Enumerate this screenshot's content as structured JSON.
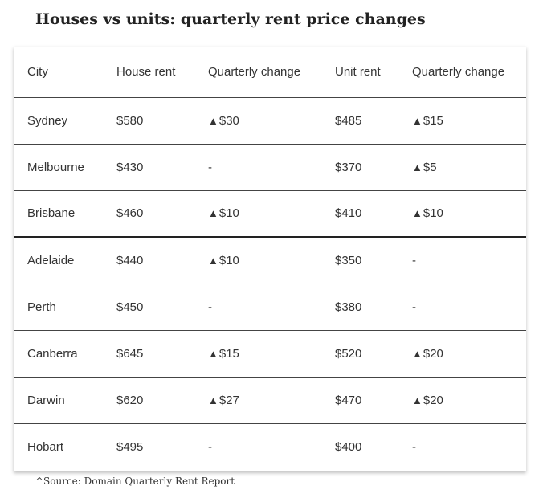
{
  "title": "Houses vs units: quarterly rent price changes",
  "source": "^Source: Domain Quarterly Rent Report",
  "chart_data": {
    "type": "table",
    "title": "Houses vs units: quarterly rent price changes",
    "columns": [
      "City",
      "House rent",
      "Quarterly change",
      "Unit rent",
      "Quarterly change"
    ],
    "rows": [
      {
        "city": "Sydney",
        "house_rent": "$580",
        "house_change": "$30",
        "house_change_dir": "up",
        "unit_rent": "$485",
        "unit_change": "$15",
        "unit_change_dir": "up"
      },
      {
        "city": "Melbourne",
        "house_rent": "$430",
        "house_change": "-",
        "house_change_dir": "none",
        "unit_rent": "$370",
        "unit_change": "$5",
        "unit_change_dir": "up"
      },
      {
        "city": "Brisbane",
        "house_rent": "$460",
        "house_change": "$10",
        "house_change_dir": "up",
        "unit_rent": "$410",
        "unit_change": "$10",
        "unit_change_dir": "up"
      },
      {
        "city": "Adelaide",
        "house_rent": "$440",
        "house_change": "$10",
        "house_change_dir": "up",
        "unit_rent": "$350",
        "unit_change": "-",
        "unit_change_dir": "none"
      },
      {
        "city": "Perth",
        "house_rent": "$450",
        "house_change": "-",
        "house_change_dir": "none",
        "unit_rent": "$380",
        "unit_change": "-",
        "unit_change_dir": "none"
      },
      {
        "city": "Canberra",
        "house_rent": "$645",
        "house_change": "$15",
        "house_change_dir": "up",
        "unit_rent": "$520",
        "unit_change": "$20",
        "unit_change_dir": "up"
      },
      {
        "city": "Darwin",
        "house_rent": "$620",
        "house_change": "$27",
        "house_change_dir": "up",
        "unit_rent": "$470",
        "unit_change": "$20",
        "unit_change_dir": "up"
      },
      {
        "city": "Hobart",
        "house_rent": "$495",
        "house_change": "-",
        "house_change_dir": "none",
        "unit_rent": "$400",
        "unit_change": "-",
        "unit_change_dir": "none"
      }
    ]
  }
}
